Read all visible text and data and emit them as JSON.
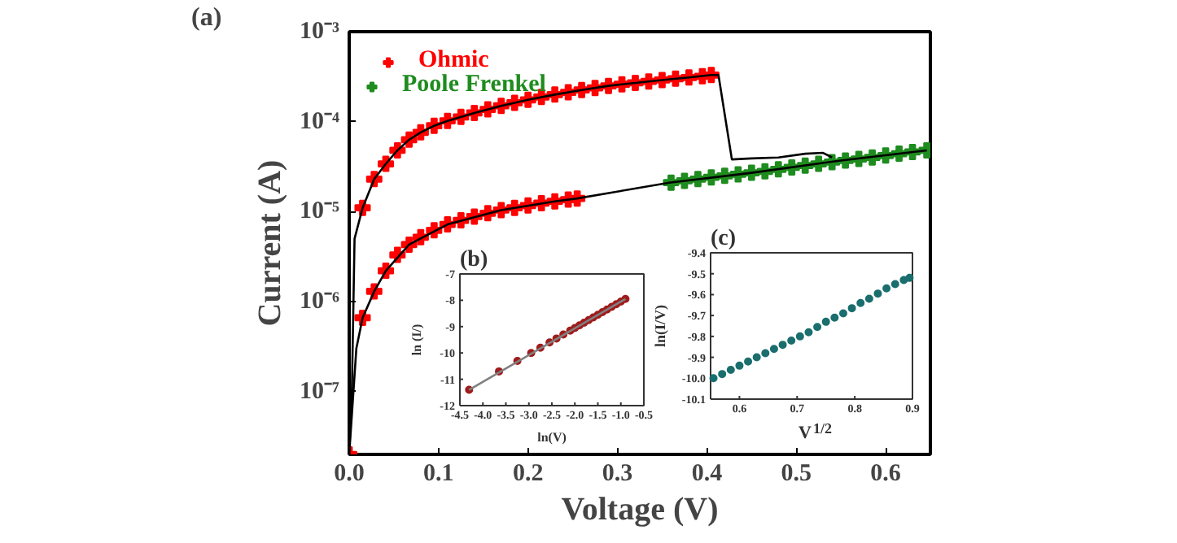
{
  "chart_data": [
    {
      "type": "line",
      "title": "(a)",
      "xlabel": "Voltage (V)",
      "ylabel": "Current (A)",
      "log": "y",
      "grid": false,
      "legend": "top left",
      "xlim": [
        0,
        0.65
      ],
      "ylim": [
        2e-08,
        0.001
      ],
      "xticks": [
        {
          "value": 0,
          "label": "0.0"
        },
        0.1,
        0.2,
        0.3,
        0.4,
        0.5,
        0.6
      ],
      "yticks": [
        {
          "value": 1e-07,
          "label": "10⁻⁷"
        },
        {
          "value": 1e-06,
          "label": "10⁻⁶"
        },
        {
          "value": 1e-05,
          "label": "10⁻⁵"
        },
        {
          "value": 0.0001,
          "label": "10⁻⁴"
        },
        {
          "value": 0.001,
          "label": "10⁻³"
        }
      ],
      "series": [
        {
          "color": "#000000",
          "marker": "none",
          "x": [
            0,
            0.003,
            0.006,
            0.015,
            0.028,
            0.041,
            0.054,
            0.067,
            0.08,
            0.095,
            0.11,
            0.14,
            0.17,
            0.2,
            0.23,
            0.26,
            0.29,
            0.32,
            0.35,
            0.38,
            0.405,
            0.413,
            0.428,
            0.45,
            0.48,
            0.51,
            0.53,
            0.54
          ],
          "values": [
            2e-08,
            1e-07,
            5e-06,
            1.1e-05,
            2.3e-05,
            3.4e-05,
            4.8e-05,
            6.3e-05,
            7.6e-05,
            9e-05,
            0.000102,
            0.000125,
            0.00015,
            0.000175,
            0.0002,
            0.000225,
            0.00025,
            0.00027,
            0.00029,
            0.00031,
            0.00033,
            0.00033,
            3.8e-05,
            3.9e-05,
            4e-05,
            4.4e-05,
            4.5e-05,
            4e-05
          ]
        },
        {
          "color": "#000000",
          "marker": "none",
          "x": [
            0,
            0.008,
            0.015,
            0.028,
            0.041,
            0.067,
            0.11,
            0.17,
            0.23,
            0.255,
            0.358,
            0.45,
            0.55,
            0.646
          ],
          "values": [
            2e-08,
            3e-07,
            6.6e-07,
            1.3e-06,
            2.2e-06,
            4.3e-06,
            7.2e-06,
            1.04e-05,
            1.3e-05,
            1.4e-05,
            2.1e-05,
            2.7e-05,
            3.7e-05,
            4.8e-05
          ]
        },
        {
          "name": "Ohmic",
          "type": "scatter",
          "color": "#ff0000",
          "marker": "cross",
          "x": [
            0.015,
            0.028,
            0.041,
            0.054,
            0.067,
            0.08,
            0.095,
            0.11,
            0.125,
            0.14,
            0.155,
            0.17,
            0.185,
            0.2,
            0.215,
            0.23,
            0.245,
            0.26,
            0.275,
            0.29,
            0.305,
            0.32,
            0.335,
            0.35,
            0.365,
            0.38,
            0.395,
            0.405
          ],
          "values": [
            1.1e-05,
            2.3e-05,
            3.4e-05,
            4.8e-05,
            6.3e-05,
            7.6e-05,
            9e-05,
            0.000102,
            0.000113,
            0.000125,
            0.000137,
            0.00015,
            0.000162,
            0.000175,
            0.000188,
            0.0002,
            0.000212,
            0.000225,
            0.000237,
            0.00025,
            0.00026,
            0.00027,
            0.00028,
            0.00029,
            0.0003,
            0.00031,
            0.00032,
            0.00033
          ]
        },
        {
          "type": "scatter",
          "color": "#ff0000",
          "marker": "cross",
          "x": [
            0,
            0.015,
            0.028,
            0.041,
            0.054,
            0.067,
            0.08,
            0.095,
            0.11,
            0.125,
            0.14,
            0.155,
            0.17,
            0.185,
            0.2,
            0.215,
            0.23,
            0.245,
            0.255
          ],
          "values": [
            2e-08,
            6.6e-07,
            1.3e-06,
            2.2e-06,
            3.3e-06,
            4.3e-06,
            5.2e-06,
            6.2e-06,
            7.2e-06,
            8e-06,
            8.8e-06,
            9.6e-06,
            1.04e-05,
            1.1e-05,
            1.17e-05,
            1.24e-05,
            1.3e-05,
            1.36e-05,
            1.4e-05
          ]
        },
        {
          "name": "Poole Frenkel",
          "type": "scatter",
          "color": "#1e8c1e",
          "marker": "cross",
          "x": [
            0.36,
            0.375,
            0.39,
            0.405,
            0.42,
            0.435,
            0.45,
            0.465,
            0.48,
            0.495,
            0.51,
            0.525,
            0.54,
            0.555,
            0.57,
            0.585,
            0.6,
            0.615,
            0.63,
            0.646
          ],
          "values": [
            2.1e-05,
            2.2e-05,
            2.3e-05,
            2.4e-05,
            2.5e-05,
            2.6e-05,
            2.7e-05,
            2.8e-05,
            2.95e-05,
            3.1e-05,
            3.25e-05,
            3.4e-05,
            3.55e-05,
            3.7e-05,
            3.85e-05,
            4e-05,
            4.2e-05,
            4.4e-05,
            4.6e-05,
            4.8e-05
          ]
        }
      ]
    },
    {
      "type": "scatter",
      "title": "(b)",
      "xlabel": "ln(V)",
      "ylabel": "ln (I/)",
      "grid": false,
      "xlim": [
        -4.5,
        -0.5
      ],
      "ylim": [
        -12,
        -7
      ],
      "xticks": [
        -4.5,
        {
          "value": -4.0,
          "label": "-4.0"
        },
        -3.5,
        {
          "value": -3.0,
          "label": "-3.0"
        },
        -2.5,
        {
          "value": -2.0,
          "label": "-2.0"
        },
        -1.5,
        {
          "value": -1.0,
          "label": "-1.0"
        },
        -0.5
      ],
      "yticks": [
        -12,
        -11,
        -10,
        -9,
        -8,
        -7
      ],
      "series": [
        {
          "type": "line",
          "color": "#808080",
          "marker": "none",
          "x": [
            -4.3,
            -0.9
          ],
          "values": [
            -11.4,
            -7.95
          ]
        },
        {
          "color": "#a01c1c",
          "marker": "circle",
          "x": [
            -4.3,
            -3.65,
            -3.25,
            -2.95,
            -2.75,
            -2.55,
            -2.4,
            -2.25,
            -2.1,
            -2.0,
            -1.9,
            -1.8,
            -1.7,
            -1.6,
            -1.5,
            -1.4,
            -1.3,
            -1.2,
            -1.1,
            -1.0,
            -0.9
          ],
          "values": [
            -11.4,
            -10.7,
            -10.3,
            -10.0,
            -9.8,
            -9.6,
            -9.45,
            -9.3,
            -9.15,
            -9.05,
            -8.95,
            -8.85,
            -8.75,
            -8.65,
            -8.55,
            -8.45,
            -8.35,
            -8.25,
            -8.15,
            -8.05,
            -7.95
          ]
        }
      ]
    },
    {
      "type": "scatter",
      "title": "(c)",
      "xlabel": "V$^{1/2}$",
      "ylabel": "ln(I/V)",
      "grid": false,
      "xlim": [
        0.55,
        0.9
      ],
      "ylim": [
        -10.1,
        -9.4
      ],
      "xticks": [
        0.6,
        0.7,
        0.8,
        0.9
      ],
      "yticks": [
        -10.1,
        {
          "value": -10.0,
          "label": "-10.0"
        },
        -9.9,
        -9.8,
        -9.7,
        -9.6,
        -9.5,
        -9.4
      ],
      "series": [
        {
          "color": "#1b6e6e",
          "marker": "circle",
          "x": [
            0.555,
            0.57,
            0.585,
            0.6,
            0.615,
            0.63,
            0.645,
            0.66,
            0.675,
            0.69,
            0.705,
            0.72,
            0.735,
            0.75,
            0.765,
            0.78,
            0.795,
            0.81,
            0.825,
            0.84,
            0.855,
            0.87,
            0.885,
            0.895
          ],
          "values": [
            -10.0,
            -9.98,
            -9.96,
            -9.94,
            -9.92,
            -9.9,
            -9.88,
            -9.86,
            -9.84,
            -9.82,
            -9.8,
            -9.78,
            -9.755,
            -9.73,
            -9.71,
            -9.69,
            -9.665,
            -9.64,
            -9.62,
            -9.595,
            -9.57,
            -9.55,
            -9.53,
            -9.52
          ]
        }
      ]
    }
  ]
}
